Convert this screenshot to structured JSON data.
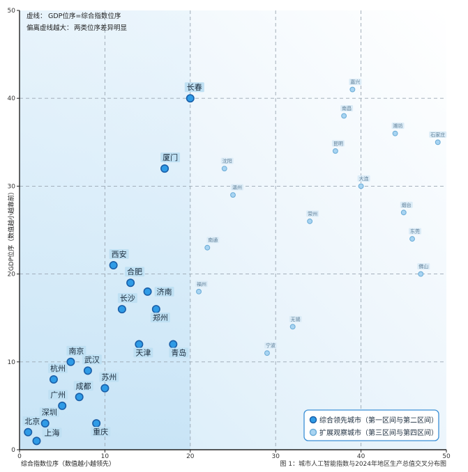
{
  "notes": {
    "line1_label": "虚线：",
    "line1_text": "GDP位序=综合指数位序",
    "line2_label": "偏离虚线越大：",
    "line2_text": "两类位序差异明显"
  },
  "caption": "图 1：城市人工智能指数与2024年地区生产总值交叉分布图",
  "colors": {
    "lead_fill": "#2f9be6",
    "lead_stroke": "#1a5fa8",
    "watch_fill": "#a8d4f2",
    "watch_stroke": "#6eaed8",
    "label_bg_major": "#bfe0f3",
    "label_bg_minor": "#dcecf7",
    "frame": "#222222",
    "legend_border": "#3a8fd6"
  },
  "chart_data": {
    "type": "scatter",
    "title": "",
    "xlabel": "综合指数位序（数值越小越领先）",
    "ylabel": "GDP位序（数值越小越靠前）",
    "xlim": [
      0,
      50
    ],
    "ylim": [
      0,
      50
    ],
    "x_ticks": [
      0,
      10,
      20,
      30,
      40,
      50
    ],
    "y_ticks": [
      0,
      10,
      20,
      30,
      40,
      50
    ],
    "grid": true,
    "reference_lines": [
      10,
      20,
      30,
      40
    ],
    "highlight_region": {
      "x": [
        0,
        20
      ],
      "y": [
        0,
        50
      ]
    },
    "legend_position": "bottom-right",
    "series": [
      {
        "name": "综合领先城市（第一区间与第二区间）",
        "points": [
          {
            "label": "北京",
            "x": 1,
            "y": 2
          },
          {
            "label": "上海",
            "x": 2,
            "y": 1
          },
          {
            "label": "深圳",
            "x": 3,
            "y": 3
          },
          {
            "label": "广州",
            "x": 5,
            "y": 5
          },
          {
            "label": "杭州",
            "x": 4,
            "y": 8
          },
          {
            "label": "南京",
            "x": 6,
            "y": 10
          },
          {
            "label": "成都",
            "x": 7,
            "y": 6
          },
          {
            "label": "武汉",
            "x": 8,
            "y": 9
          },
          {
            "label": "重庆",
            "x": 9,
            "y": 3
          },
          {
            "label": "苏州",
            "x": 10,
            "y": 7
          },
          {
            "label": "西安",
            "x": 11,
            "y": 21
          },
          {
            "label": "长沙",
            "x": 12,
            "y": 16
          },
          {
            "label": "合肥",
            "x": 13,
            "y": 19
          },
          {
            "label": "天津",
            "x": 14,
            "y": 12
          },
          {
            "label": "济南",
            "x": 15,
            "y": 18
          },
          {
            "label": "郑州",
            "x": 16,
            "y": 16
          },
          {
            "label": "厦门",
            "x": 17,
            "y": 32
          },
          {
            "label": "青岛",
            "x": 18,
            "y": 12
          },
          {
            "label": "长春",
            "x": 20,
            "y": 40
          }
        ]
      },
      {
        "name": "扩展观察城市（第三区间与第四区间）",
        "points": [
          {
            "label": "福州",
            "x": 21,
            "y": 18
          },
          {
            "label": "南通",
            "x": 22,
            "y": 23
          },
          {
            "label": "沈阳",
            "x": 24,
            "y": 32
          },
          {
            "label": "温州",
            "x": 25,
            "y": 29
          },
          {
            "label": "宁波",
            "x": 29,
            "y": 11
          },
          {
            "label": "无锡",
            "x": 32,
            "y": 14
          },
          {
            "label": "常州",
            "x": 34,
            "y": 26
          },
          {
            "label": "昆明",
            "x": 37,
            "y": 34
          },
          {
            "label": "南昌",
            "x": 38,
            "y": 38
          },
          {
            "label": "嘉兴",
            "x": 39,
            "y": 41
          },
          {
            "label": "大连",
            "x": 40,
            "y": 30
          },
          {
            "label": "潍坊",
            "x": 44,
            "y": 36
          },
          {
            "label": "烟台",
            "x": 45,
            "y": 27
          },
          {
            "label": "东莞",
            "x": 46,
            "y": 24
          },
          {
            "label": "佛山",
            "x": 47,
            "y": 20
          },
          {
            "label": "石家庄",
            "x": 49,
            "y": 35
          }
        ]
      }
    ]
  }
}
